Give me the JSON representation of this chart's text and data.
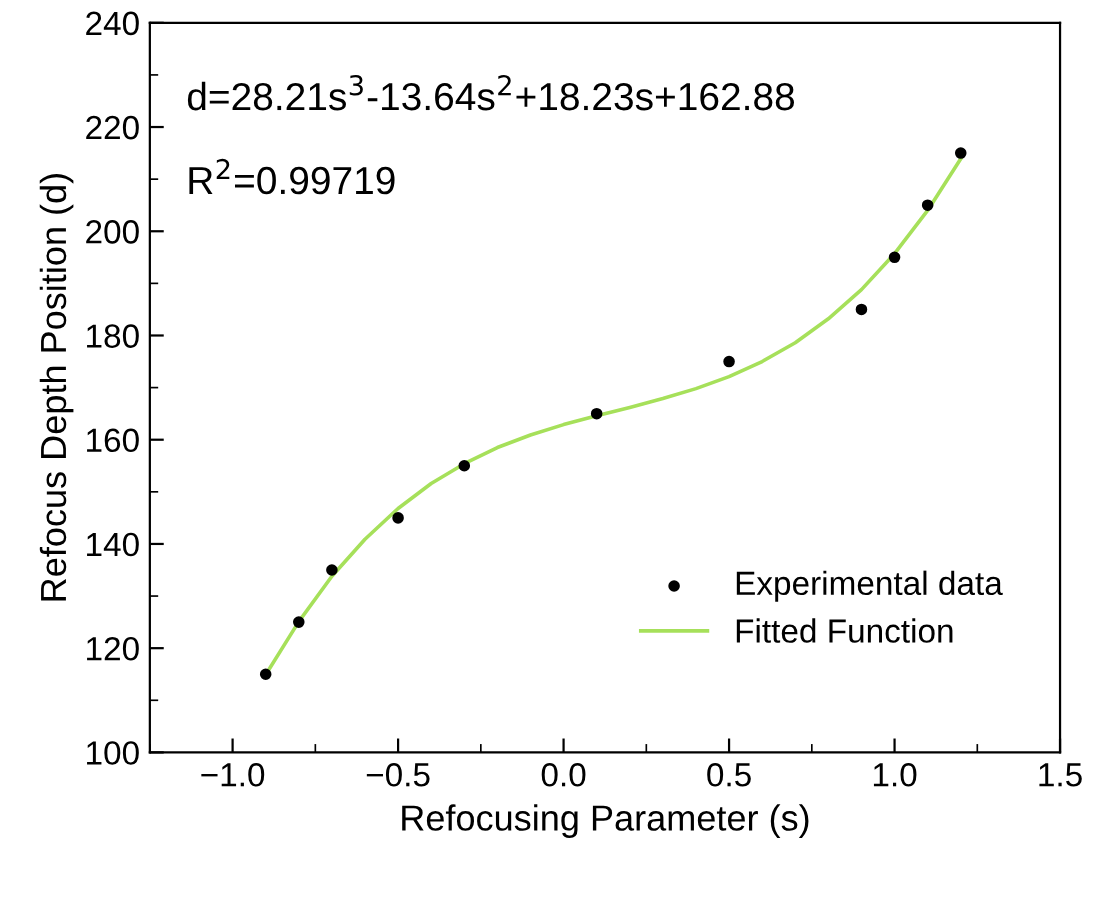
{
  "chart_data": {
    "type": "scatter",
    "xlabel": "Refocusing Parameter (s)",
    "ylabel": "Refocus Depth Position (d)",
    "xlim": [
      -1.25,
      1.5
    ],
    "xticks": [
      {
        "value": -1.0,
        "label": "−1.0"
      },
      {
        "value": -0.5,
        "label": "−0.5"
      },
      {
        "value": 0.0,
        "label": "0.0"
      },
      {
        "value": 0.5,
        "label": "0.5"
      },
      {
        "value": 1.0,
        "label": "1.0"
      },
      {
        "value": 1.5,
        "label": "1.5"
      }
    ],
    "ylim": [
      100,
      240
    ],
    "yticks": [
      100,
      120,
      140,
      160,
      180,
      200,
      220,
      240
    ],
    "grid": false,
    "legend": "bottom right",
    "annotations": [
      "d=28.21s$^{3}$-13.64s$^{2}$+18.23s+162.88",
      "R$^{2}$=0.99719"
    ],
    "series": [
      {
        "name": "Experimental data",
        "marker": "circle",
        "color": "#000000",
        "x": [
          -0.9,
          -0.8,
          -0.7,
          -0.5,
          -0.3,
          0.1,
          0.5,
          0.9,
          1.0,
          1.1,
          1.2
        ],
        "values": [
          115,
          125,
          135,
          145,
          155,
          165,
          175,
          185,
          195,
          205,
          215
        ]
      },
      {
        "name": "Fitted Function",
        "type": "line",
        "marker": "none",
        "line_style": "solid",
        "color": "#a6e05a",
        "x": [
          -0.9,
          -0.8,
          -0.7,
          -0.6,
          -0.5,
          -0.4,
          -0.3,
          -0.2,
          -0.1,
          0.0,
          0.1,
          0.2,
          0.3,
          0.4,
          0.5,
          0.6,
          0.7,
          0.8,
          0.9,
          1.0,
          1.1,
          1.2
        ],
        "values": [
          114.9,
          125.1,
          133.8,
          140.9,
          146.8,
          151.6,
          155.4,
          158.5,
          160.9,
          162.9,
          164.6,
          166.2,
          167.9,
          169.8,
          172.1,
          175.0,
          178.6,
          183.2,
          188.8,
          195.7,
          204.0,
          213.9
        ]
      }
    ]
  }
}
